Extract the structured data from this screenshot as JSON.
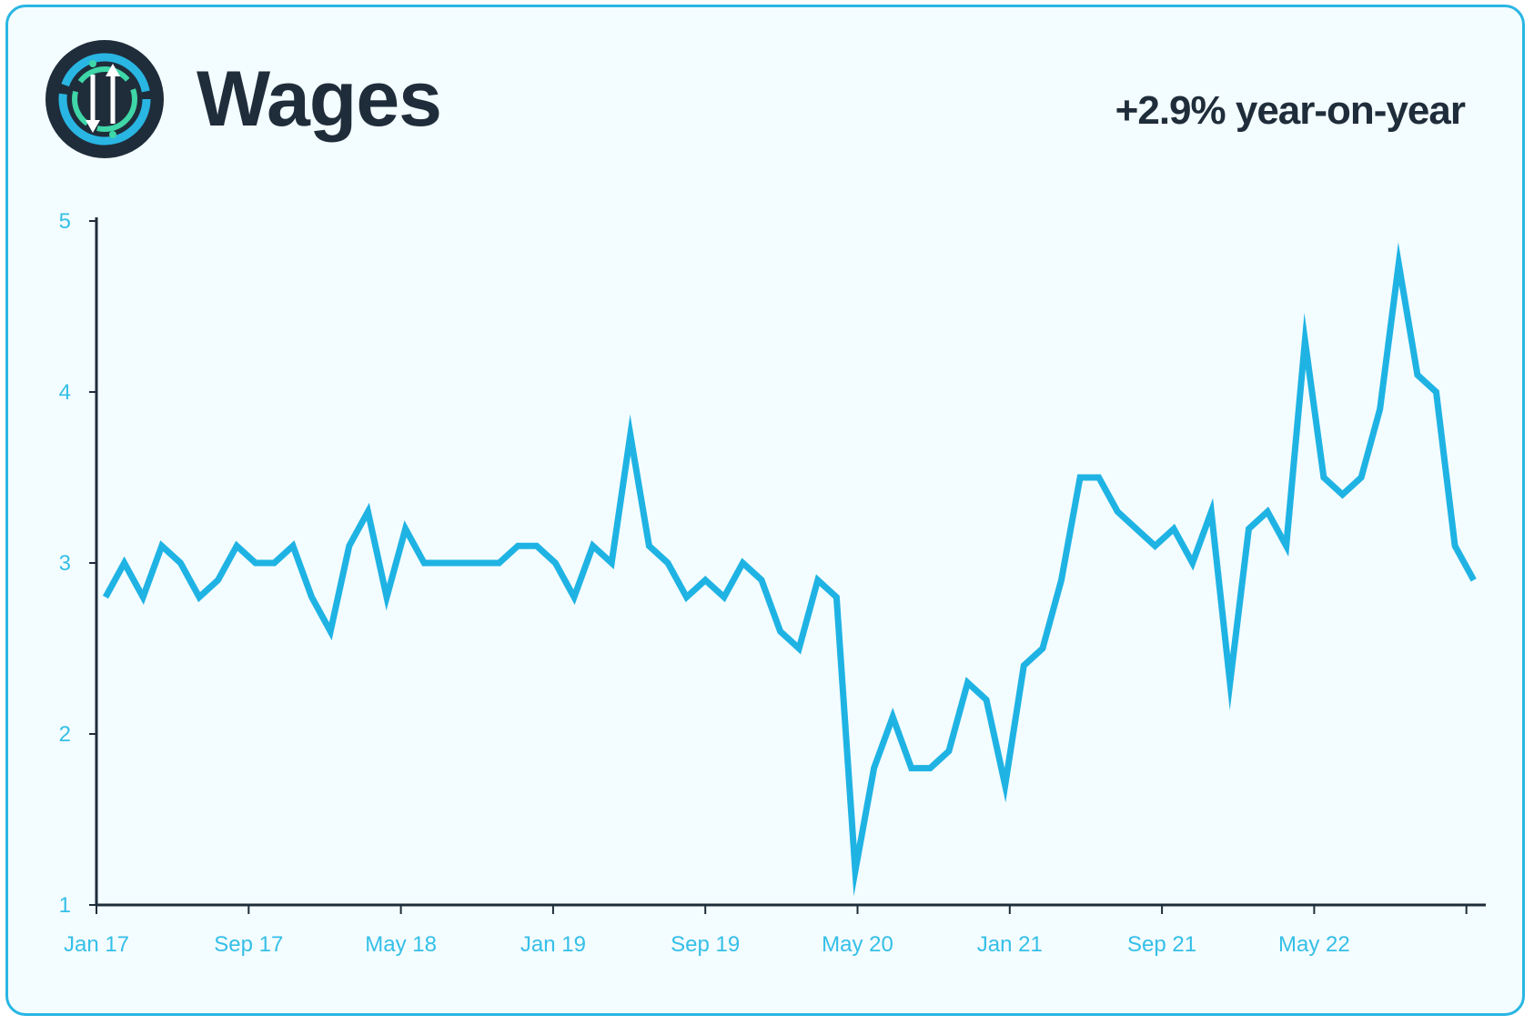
{
  "header": {
    "title": "Wages",
    "subtitle": "+2.9% year-on-year",
    "logo_icon": "wage-arrows-icon"
  },
  "colors": {
    "line": "#1fb3e4",
    "tick_text": "#35bfe8",
    "title": "#1f2d3b",
    "border": "#29b6e3",
    "background": "#f3fcfe"
  },
  "chart_data": {
    "type": "line",
    "title": "Wages",
    "xlabel": "",
    "ylabel": "",
    "ylim": [
      1,
      5
    ],
    "yticks": [
      1,
      2,
      3,
      4,
      5
    ],
    "xticks": [
      "Jan 17",
      "Sep 17",
      "May 18",
      "Jan 19",
      "Sep 19",
      "May 20",
      "Jan 21",
      "Sep 21",
      "May 22"
    ],
    "grid": false,
    "legend": "none",
    "x_start": "2017-01",
    "x_interval": "month",
    "series": [
      {
        "values": [
          2.8,
          3.0,
          2.8,
          3.1,
          3.0,
          2.8,
          2.9,
          3.1,
          3.0,
          3.0,
          3.1,
          2.8,
          2.6,
          3.1,
          3.3,
          2.8,
          3.2,
          3.0,
          3.0,
          3.0,
          3.0,
          3.0,
          3.1,
          3.1,
          3.0,
          2.8,
          3.1,
          3.0,
          3.75,
          3.1,
          3.0,
          2.8,
          2.9,
          2.8,
          3.0,
          2.9,
          2.6,
          2.5,
          2.9,
          2.8,
          1.2,
          1.8,
          2.1,
          1.8,
          1.8,
          1.9,
          2.3,
          2.2,
          1.7,
          2.4,
          2.5,
          2.9,
          3.5,
          3.5,
          3.3,
          3.2,
          3.1,
          3.2,
          3.0,
          3.3,
          2.3,
          3.2,
          3.3,
          3.1,
          4.3,
          3.5,
          3.4,
          3.5,
          3.9,
          4.75,
          4.1,
          4.0,
          3.1,
          2.9
        ]
      }
    ]
  }
}
